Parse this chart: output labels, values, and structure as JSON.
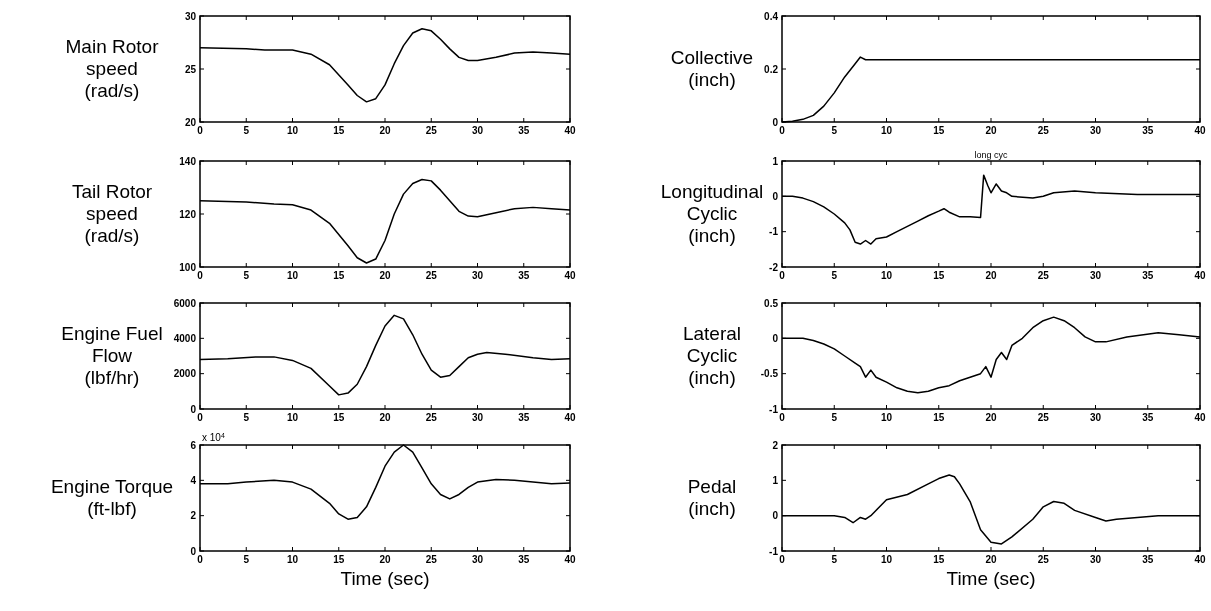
{
  "chart_data": [
    {
      "type": "line",
      "ylabel": "Main Rotor\nspeed\n(rad/s)",
      "x": [
        0,
        5,
        7,
        10,
        12,
        14,
        16,
        17,
        18,
        19,
        20,
        21,
        22,
        23,
        24,
        25,
        26,
        27,
        28,
        29,
        30,
        32,
        34,
        36,
        38,
        40
      ],
      "series": [
        {
          "color": "#000000",
          "values": [
            27,
            26.9,
            26.8,
            26.8,
            26.4,
            25.4,
            23.5,
            22.5,
            21.9,
            22.2,
            23.5,
            25.5,
            27.2,
            28.4,
            28.8,
            28.6,
            27.8,
            26.9,
            26.1,
            25.8,
            25.8,
            26.1,
            26.5,
            26.6,
            26.5,
            26.4
          ]
        }
      ],
      "xlim": [
        0,
        40
      ],
      "ylim": [
        20,
        30
      ],
      "xticks": [
        0,
        5,
        10,
        15,
        20,
        25,
        30,
        35,
        40
      ],
      "yticks": [
        20,
        25,
        30
      ]
    },
    {
      "type": "line",
      "ylabel": "Collective\n(inch)",
      "x": [
        0,
        1,
        2,
        3,
        4,
        5,
        6,
        7,
        7.5,
        8,
        10,
        40
      ],
      "series": [
        {
          "color": "#000000",
          "values": [
            0,
            0.003,
            0.01,
            0.025,
            0.06,
            0.11,
            0.17,
            0.22,
            0.245,
            0.235,
            0.235,
            0.235
          ]
        }
      ],
      "xlim": [
        0,
        40
      ],
      "ylim": [
        0,
        0.4
      ],
      "xticks": [
        0,
        5,
        10,
        15,
        20,
        25,
        30,
        35,
        40
      ],
      "yticks": [
        0,
        0.2,
        0.4
      ]
    },
    {
      "type": "line",
      "ylabel": "Tail Rotor\nspeed\n(rad/s)",
      "x": [
        0,
        5,
        8,
        10,
        12,
        14,
        16,
        17,
        18,
        19,
        20,
        21,
        22,
        23,
        24,
        25,
        26,
        27,
        28,
        29,
        30,
        32,
        34,
        36,
        38,
        40
      ],
      "series": [
        {
          "color": "#000000",
          "values": [
            125,
            124.5,
            123.8,
            123.5,
            121.5,
            116.5,
            108,
            103.5,
            101.5,
            103,
            110,
            120,
            127.5,
            131.5,
            133,
            132.5,
            129,
            125,
            121,
            119.2,
            119,
            120.5,
            122,
            122.5,
            122,
            121.5
          ]
        }
      ],
      "xlim": [
        0,
        40
      ],
      "ylim": [
        100,
        140
      ],
      "xticks": [
        0,
        5,
        10,
        15,
        20,
        25,
        30,
        35,
        40
      ],
      "yticks": [
        100,
        120,
        140
      ]
    },
    {
      "type": "line",
      "title": "long cyc",
      "ylabel": "Longitudinal\nCyclic\n(inch)",
      "x": [
        0,
        1,
        2,
        3,
        4,
        5,
        6,
        6.5,
        7,
        7.5,
        8,
        8.5,
        9,
        10,
        11,
        12,
        13,
        14,
        15,
        15.5,
        16,
        17,
        18,
        19,
        19.1,
        19.3,
        19.7,
        20,
        20.5,
        21,
        21.5,
        22,
        24,
        25,
        26,
        28,
        30,
        34,
        40
      ],
      "series": [
        {
          "color": "#000000",
          "values": [
            0,
            0,
            -0.05,
            -0.15,
            -0.3,
            -0.5,
            -0.75,
            -0.95,
            -1.3,
            -1.35,
            -1.25,
            -1.35,
            -1.2,
            -1.15,
            -1.0,
            -0.85,
            -0.7,
            -0.55,
            -0.42,
            -0.35,
            -0.45,
            -0.58,
            -0.58,
            -0.6,
            -0.2,
            0.6,
            0.3,
            0.1,
            0.35,
            0.15,
            0.1,
            0,
            -0.05,
            0,
            0.1,
            0.15,
            0.1,
            0.05,
            0.05
          ]
        }
      ],
      "xlim": [
        0,
        40
      ],
      "ylim": [
        -2,
        1
      ],
      "xticks": [
        0,
        5,
        10,
        15,
        20,
        25,
        30,
        35,
        40
      ],
      "yticks": [
        -2,
        -1,
        0,
        1
      ]
    },
    {
      "type": "line",
      "ylabel": "Engine Fuel\nFlow\n(lbf/hr)",
      "x": [
        0,
        3,
        6,
        8,
        10,
        12,
        14,
        15,
        16,
        17,
        18,
        19,
        20,
        21,
        22,
        23,
        24,
        25,
        26,
        27,
        28,
        29,
        30,
        31,
        33,
        36,
        38,
        40
      ],
      "series": [
        {
          "color": "#000000",
          "values": [
            2800,
            2850,
            2950,
            2950,
            2750,
            2300,
            1300,
            800,
            900,
            1400,
            2400,
            3600,
            4700,
            5300,
            5100,
            4200,
            3100,
            2200,
            1800,
            1900,
            2400,
            2900,
            3100,
            3200,
            3100,
            2900,
            2800,
            2850
          ]
        }
      ],
      "xlim": [
        0,
        40
      ],
      "ylim": [
        0,
        6000
      ],
      "xticks": [
        0,
        5,
        10,
        15,
        20,
        25,
        30,
        35,
        40
      ],
      "yticks": [
        0,
        2000,
        4000,
        6000
      ]
    },
    {
      "type": "line",
      "ylabel": "Lateral\nCyclic\n(inch)",
      "x": [
        0,
        2,
        3,
        4,
        5,
        6,
        7,
        7.5,
        8,
        8.5,
        9,
        10,
        11,
        12,
        13,
        14,
        15,
        16,
        17,
        18,
        19,
        19.5,
        20,
        20.5,
        21,
        21.5,
        22,
        23,
        24,
        25,
        26,
        27,
        28,
        29,
        30,
        31,
        33,
        36,
        38,
        40
      ],
      "series": [
        {
          "color": "#000000",
          "values": [
            0,
            0,
            -0.03,
            -0.08,
            -0.15,
            -0.25,
            -0.35,
            -0.4,
            -0.55,
            -0.45,
            -0.55,
            -0.62,
            -0.7,
            -0.75,
            -0.77,
            -0.75,
            -0.7,
            -0.67,
            -0.6,
            -0.55,
            -0.5,
            -0.4,
            -0.55,
            -0.3,
            -0.2,
            -0.3,
            -0.1,
            0,
            0.15,
            0.25,
            0.3,
            0.25,
            0.15,
            0.02,
            -0.05,
            -0.05,
            0.02,
            0.08,
            0.05,
            0.02
          ]
        }
      ],
      "xlim": [
        0,
        40
      ],
      "ylim": [
        -1,
        0.5
      ],
      "xticks": [
        0,
        5,
        10,
        15,
        20,
        25,
        30,
        35,
        40
      ],
      "yticks": [
        -1,
        -0.5,
        0,
        0.5
      ]
    },
    {
      "type": "line",
      "ylabel": "Engine Torque\n(ft-lbf)",
      "xlabel": "Time (sec)",
      "annotations": [
        "x 10$^{4}$"
      ],
      "x": [
        0,
        3,
        5,
        8,
        10,
        12,
        14,
        15,
        16,
        17,
        18,
        19,
        20,
        21,
        22,
        23,
        24,
        25,
        26,
        27,
        28,
        29,
        30,
        32,
        34,
        36,
        38,
        40
      ],
      "series": [
        {
          "color": "#000000",
          "values": [
            3.8,
            3.8,
            3.9,
            4.0,
            3.9,
            3.5,
            2.7,
            2.1,
            1.8,
            1.9,
            2.5,
            3.6,
            4.8,
            5.6,
            6.0,
            5.6,
            4.7,
            3.8,
            3.2,
            2.95,
            3.2,
            3.6,
            3.9,
            4.05,
            4.0,
            3.9,
            3.8,
            3.85
          ]
        }
      ],
      "xlim": [
        0,
        40
      ],
      "ylim": [
        0,
        6
      ],
      "xticks": [
        0,
        5,
        10,
        15,
        20,
        25,
        30,
        35,
        40
      ],
      "yticks": [
        0,
        2,
        4,
        6
      ]
    },
    {
      "type": "line",
      "ylabel": "Pedal\n(inch)",
      "xlabel": "Time (sec)",
      "x": [
        0,
        5,
        6,
        6.8,
        7.5,
        8,
        8.5,
        10,
        12,
        14,
        15,
        16,
        16.5,
        17,
        18,
        19,
        20,
        21,
        22,
        24,
        25,
        26,
        27,
        28,
        30,
        31,
        32,
        34,
        36,
        38,
        40
      ],
      "series": [
        {
          "color": "#000000",
          "values": [
            0,
            0,
            -0.05,
            -0.2,
            -0.05,
            -0.1,
            0,
            0.45,
            0.6,
            0.9,
            1.05,
            1.15,
            1.1,
            0.9,
            0.4,
            -0.4,
            -0.75,
            -0.8,
            -0.6,
            -0.1,
            0.25,
            0.4,
            0.35,
            0.15,
            -0.05,
            -0.15,
            -0.1,
            -0.05,
            0,
            0,
            0
          ]
        }
      ],
      "xlim": [
        0,
        40
      ],
      "ylim": [
        -1,
        2
      ],
      "xticks": [
        0,
        5,
        10,
        15,
        20,
        25,
        30,
        35,
        40
      ],
      "yticks": [
        -1,
        0,
        1,
        2
      ]
    }
  ]
}
